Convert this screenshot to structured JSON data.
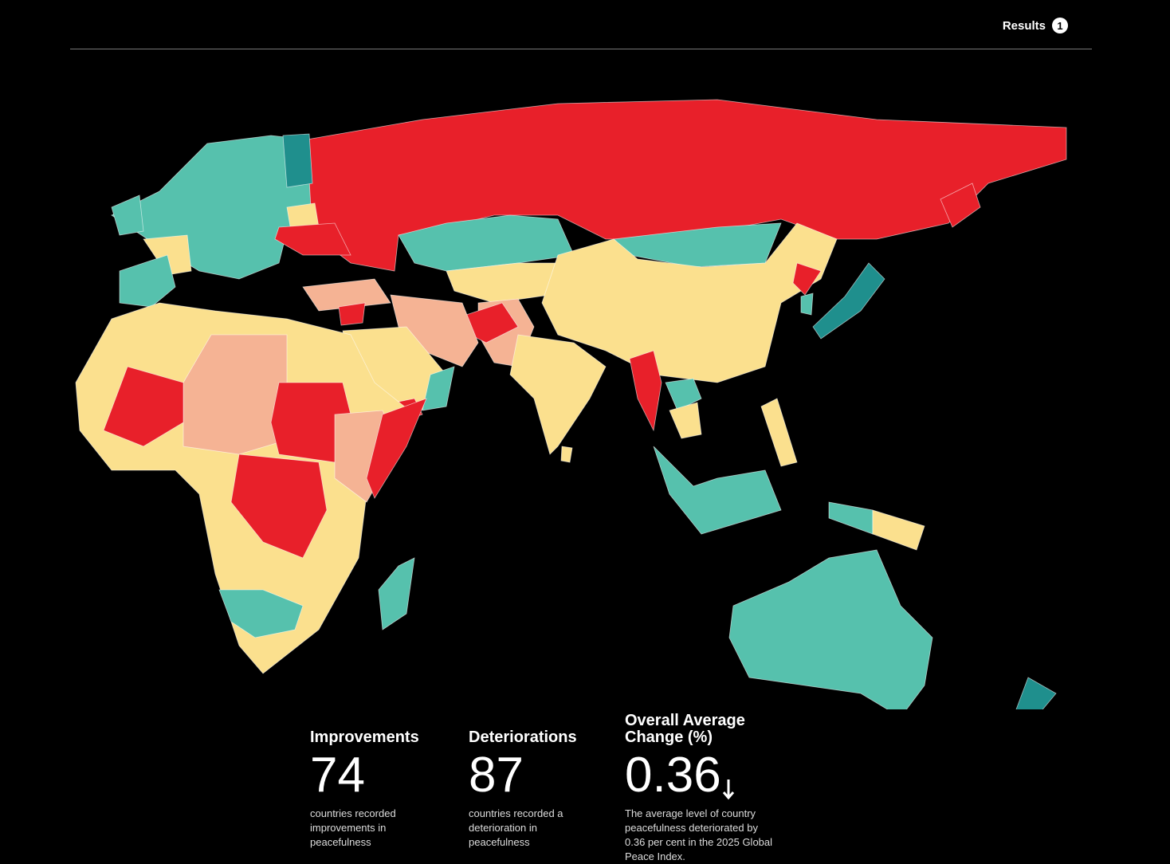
{
  "header": {
    "results_label": "Results",
    "results_count": 1
  },
  "stats": [
    {
      "title": "Improvements",
      "value": 74,
      "description": "countries recorded improvements in peacefulness"
    },
    {
      "title": "Deteriorations",
      "value": 87,
      "description": "countries recorded a deterioration in peacefulness"
    },
    {
      "title": "Overall Average Change (%)",
      "value": 0.36,
      "description": "The average level of country peacefulness deteriorated by 0.36 per cent in the 2025 Global Peace Index."
    }
  ]
}
